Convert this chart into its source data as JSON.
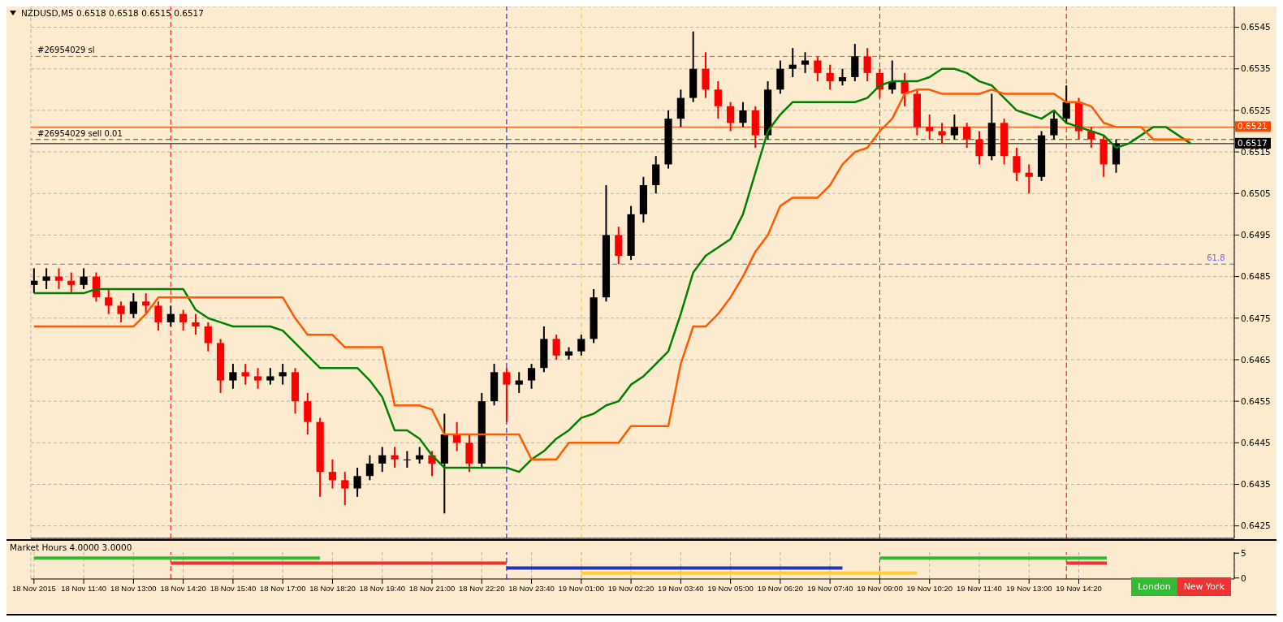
{
  "chart_data": [
    {
      "type": "candlestick",
      "title": "NZDUSD,M5  0.6518 0.6518 0.6515 0.6517",
      "x": [
        "2015-11-18T10:20",
        "2015-11-18T10:40",
        "2015-11-18T11:00",
        "2015-11-18T11:20",
        "2015-11-18T11:40",
        "2015-11-18T12:00",
        "2015-11-18T12:20",
        "2015-11-18T12:40",
        "2015-11-18T13:00",
        "2015-11-18T13:20",
        "2015-11-18T13:40",
        "2015-11-18T14:00",
        "2015-11-18T14:20",
        "2015-11-18T14:40",
        "2015-11-18T15:00",
        "2015-11-18T15:20",
        "2015-11-18T15:40",
        "2015-11-18T16:00",
        "2015-11-18T16:20",
        "2015-11-18T16:40",
        "2015-11-18T17:00",
        "2015-11-18T17:20",
        "2015-11-18T17:40",
        "2015-11-18T18:00",
        "2015-11-18T18:20",
        "2015-11-18T18:40",
        "2015-11-18T19:00",
        "2015-11-18T19:20",
        "2015-11-18T19:40",
        "2015-11-18T20:00",
        "2015-11-18T20:20",
        "2015-11-18T20:40",
        "2015-11-18T21:00",
        "2015-11-18T21:20",
        "2015-11-18T21:40",
        "2015-11-18T22:00",
        "2015-11-18T22:20",
        "2015-11-18T22:40",
        "2015-11-18T23:00",
        "2015-11-18T23:20",
        "2015-11-18T23:40",
        "2015-11-19T00:00",
        "2015-11-19T00:20",
        "2015-11-19T00:40",
        "2015-11-19T01:00",
        "2015-11-19T01:20",
        "2015-11-19T01:40",
        "2015-11-19T02:00",
        "2015-11-19T02:20",
        "2015-11-19T02:40",
        "2015-11-19T03:00",
        "2015-11-19T03:20",
        "2015-11-19T03:40",
        "2015-11-19T04:00",
        "2015-11-19T04:20",
        "2015-11-19T04:40",
        "2015-11-19T05:00",
        "2015-11-19T05:20",
        "2015-11-19T05:40",
        "2015-11-19T06:00",
        "2015-11-19T06:20",
        "2015-11-19T06:40",
        "2015-11-19T07:00",
        "2015-11-19T07:20",
        "2015-11-19T07:40",
        "2015-11-19T08:00",
        "2015-11-19T08:20",
        "2015-11-19T08:40",
        "2015-11-19T09:00",
        "2015-11-19T09:20",
        "2015-11-19T09:40",
        "2015-11-19T10:00",
        "2015-11-19T10:20",
        "2015-11-19T10:40",
        "2015-11-19T11:00",
        "2015-11-19T11:20",
        "2015-11-19T11:40",
        "2015-11-19T12:00",
        "2015-11-19T12:20",
        "2015-11-19T12:40",
        "2015-11-19T13:00",
        "2015-11-19T13:20",
        "2015-11-19T13:40",
        "2015-11-19T14:00",
        "2015-11-19T14:20",
        "2015-11-19T14:40",
        "2015-11-19T15:00",
        "2015-11-19T15:20",
        "2015-11-19T15:40",
        "2015-11-19T16:00",
        "2015-11-19T16:20",
        "2015-11-19T16:40",
        "2015-11-19T17:00",
        "2015-11-19T17:20"
      ],
      "ohlc": [
        [
          0.6483,
          0.6487,
          0.6481,
          0.6484
        ],
        [
          0.6484,
          0.6487,
          0.6482,
          0.6485
        ],
        [
          0.6485,
          0.6487,
          0.6482,
          0.6484
        ],
        [
          0.6484,
          0.6486,
          0.6481,
          0.6483
        ],
        [
          0.6483,
          0.6487,
          0.6482,
          0.6485
        ],
        [
          0.6485,
          0.6486,
          0.6479,
          0.648
        ],
        [
          0.648,
          0.6482,
          0.6476,
          0.6478
        ],
        [
          0.6478,
          0.6479,
          0.6474,
          0.6476
        ],
        [
          0.6476,
          0.6481,
          0.6475,
          0.6479
        ],
        [
          0.6479,
          0.6481,
          0.6476,
          0.6478
        ],
        [
          0.6478,
          0.6479,
          0.6472,
          0.6474
        ],
        [
          0.6474,
          0.6478,
          0.6473,
          0.6476
        ],
        [
          0.6476,
          0.6477,
          0.6472,
          0.6474
        ],
        [
          0.6474,
          0.6476,
          0.6471,
          0.6473
        ],
        [
          0.6473,
          0.6474,
          0.6467,
          0.6469
        ],
        [
          0.6469,
          0.647,
          0.6457,
          0.646
        ],
        [
          0.646,
          0.6464,
          0.6458,
          0.6462
        ],
        [
          0.6462,
          0.6464,
          0.6459,
          0.6461
        ],
        [
          0.6461,
          0.6463,
          0.6458,
          0.646
        ],
        [
          0.646,
          0.6463,
          0.6459,
          0.6461
        ],
        [
          0.6461,
          0.6464,
          0.6459,
          0.6462
        ],
        [
          0.6462,
          0.6463,
          0.6452,
          0.6455
        ],
        [
          0.6455,
          0.6457,
          0.6447,
          0.645
        ],
        [
          0.645,
          0.6451,
          0.6432,
          0.6438
        ],
        [
          0.6438,
          0.6441,
          0.6434,
          0.6436
        ],
        [
          0.6436,
          0.6438,
          0.643,
          0.6434
        ],
        [
          0.6434,
          0.6439,
          0.6432,
          0.6437
        ],
        [
          0.6437,
          0.6442,
          0.6436,
          0.644
        ],
        [
          0.644,
          0.6444,
          0.6438,
          0.6442
        ],
        [
          0.6442,
          0.6444,
          0.6439,
          0.6441
        ],
        [
          0.6441,
          0.6443,
          0.6439,
          0.6441
        ],
        [
          0.6441,
          0.6444,
          0.644,
          0.6442
        ],
        [
          0.6442,
          0.6443,
          0.6437,
          0.644
        ],
        [
          0.644,
          0.6452,
          0.6428,
          0.6447
        ],
        [
          0.6447,
          0.645,
          0.6443,
          0.6445
        ],
        [
          0.6445,
          0.6447,
          0.6438,
          0.644
        ],
        [
          0.644,
          0.6457,
          0.6439,
          0.6455
        ],
        [
          0.6455,
          0.6464,
          0.6454,
          0.6462
        ],
        [
          0.6462,
          0.6463,
          0.645,
          0.6459
        ],
        [
          0.6459,
          0.6462,
          0.6457,
          0.646
        ],
        [
          0.646,
          0.6464,
          0.6458,
          0.6463
        ],
        [
          0.6463,
          0.6473,
          0.6462,
          0.647
        ],
        [
          0.647,
          0.6471,
          0.6465,
          0.6466
        ],
        [
          0.6466,
          0.6468,
          0.6465,
          0.6467
        ],
        [
          0.6467,
          0.6471,
          0.6466,
          0.647
        ],
        [
          0.647,
          0.6482,
          0.6469,
          0.648
        ],
        [
          0.648,
          0.6507,
          0.6479,
          0.6495
        ],
        [
          0.6495,
          0.6497,
          0.6488,
          0.649
        ],
        [
          0.649,
          0.6502,
          0.6489,
          0.65
        ],
        [
          0.65,
          0.6509,
          0.6498,
          0.6507
        ],
        [
          0.6507,
          0.6514,
          0.6505,
          0.6512
        ],
        [
          0.6512,
          0.6525,
          0.6511,
          0.6523
        ],
        [
          0.6523,
          0.653,
          0.6521,
          0.6528
        ],
        [
          0.6528,
          0.6544,
          0.6527,
          0.6535
        ],
        [
          0.6535,
          0.6539,
          0.6528,
          0.653
        ],
        [
          0.653,
          0.6532,
          0.6523,
          0.6526
        ],
        [
          0.6526,
          0.6527,
          0.652,
          0.6522
        ],
        [
          0.6522,
          0.6527,
          0.6521,
          0.6525
        ],
        [
          0.6525,
          0.6526,
          0.6516,
          0.6519
        ],
        [
          0.6519,
          0.6532,
          0.6518,
          0.653
        ],
        [
          0.653,
          0.6537,
          0.6529,
          0.6535
        ],
        [
          0.6535,
          0.654,
          0.6533,
          0.6536
        ],
        [
          0.6536,
          0.6539,
          0.6534,
          0.6537
        ],
        [
          0.6537,
          0.6538,
          0.6532,
          0.6534
        ],
        [
          0.6534,
          0.6536,
          0.653,
          0.6532
        ],
        [
          0.6532,
          0.6535,
          0.6531,
          0.6533
        ],
        [
          0.6533,
          0.6541,
          0.6532,
          0.6538
        ],
        [
          0.6538,
          0.654,
          0.6532,
          0.6534
        ],
        [
          0.6534,
          0.6535,
          0.6528,
          0.653
        ],
        [
          0.653,
          0.6537,
          0.6529,
          0.6532
        ],
        [
          0.6532,
          0.6534,
          0.6526,
          0.6529
        ],
        [
          0.6529,
          0.653,
          0.6519,
          0.6521
        ],
        [
          0.6521,
          0.6524,
          0.6518,
          0.652
        ],
        [
          0.652,
          0.6522,
          0.6517,
          0.6519
        ],
        [
          0.6519,
          0.6524,
          0.6518,
          0.6521
        ],
        [
          0.6521,
          0.6522,
          0.6516,
          0.6518
        ],
        [
          0.6518,
          0.652,
          0.6512,
          0.6514
        ],
        [
          0.6514,
          0.6529,
          0.6513,
          0.6522
        ],
        [
          0.6522,
          0.6523,
          0.6512,
          0.6514
        ],
        [
          0.6514,
          0.6516,
          0.6508,
          0.651
        ],
        [
          0.651,
          0.6512,
          0.6505,
          0.6509
        ],
        [
          0.6509,
          0.652,
          0.6508,
          0.6519
        ],
        [
          0.6519,
          0.6525,
          0.6518,
          0.6523
        ],
        [
          0.6523,
          0.6531,
          0.6522,
          0.6527
        ],
        [
          0.6527,
          0.6528,
          0.6518,
          0.652
        ],
        [
          0.652,
          0.6521,
          0.6516,
          0.6518
        ],
        [
          0.6518,
          0.6519,
          0.6509,
          0.6512
        ],
        [
          0.6512,
          0.6518,
          0.651,
          0.6517
        ],
        null,
        null,
        null,
        null,
        null,
        null
      ],
      "colors": [
        "#000000",
        "#000000",
        "#ff0000",
        "#ff0000",
        "#000000",
        "#ff0000",
        "#ff0000",
        "#ff0000",
        "#000000",
        "#ff0000",
        "#ff0000",
        "#000000",
        "#ff0000",
        "#ff0000",
        "#ff0000",
        "#ff0000",
        "#000000",
        "#ff0000",
        "#ff0000",
        "#000000",
        "#000000",
        "#ff0000",
        "#ff0000",
        "#ff0000",
        "#ff0000",
        "#ff0000",
        "#000000",
        "#000000",
        "#000000",
        "#ff0000",
        "#000000",
        "#000000",
        "#ff0000",
        "#000000",
        "#ff0000",
        "#ff0000",
        "#000000",
        "#000000",
        "#ff0000",
        "#000000",
        "#000000",
        "#000000",
        "#ff0000",
        "#000000",
        "#000000",
        "#000000",
        "#000000",
        "#ff0000",
        "#000000",
        "#000000",
        "#000000",
        "#000000",
        "#000000",
        "#000000",
        "#ff0000",
        "#ff0000",
        "#ff0000",
        "#000000",
        "#ff0000",
        "#000000",
        "#000000",
        "#000000",
        "#000000",
        "#ff0000",
        "#ff0000",
        "#000000",
        "#000000",
        "#ff0000",
        "#ff0000",
        "#000000",
        "#ff0000",
        "#ff0000",
        "#ff0000",
        "#ff0000",
        "#000000",
        "#ff0000",
        "#ff0000",
        "#000000",
        "#ff0000",
        "#ff0000",
        "#ff0000",
        "#000000",
        "#000000",
        "#000000",
        "#ff0000",
        "#ff0000",
        "#ff0000",
        "#000000",
        null,
        null,
        null,
        null,
        null,
        null
      ],
      "series": [
        {
          "type": "line",
          "color": "#008000",
          "values": [
            0.6481,
            0.6481,
            0.6481,
            0.6481,
            0.6481,
            0.6482,
            0.6482,
            0.6482,
            0.6482,
            0.6482,
            0.6482,
            0.6482,
            0.6482,
            0.6477,
            0.6475,
            0.6474,
            0.6473,
            0.6473,
            0.6473,
            0.6473,
            0.6472,
            0.6469,
            0.6466,
            0.6463,
            0.6463,
            0.6463,
            0.6463,
            0.646,
            0.6456,
            0.6448,
            0.6448,
            0.6446,
            0.6442,
            0.6439,
            0.6439,
            0.6439,
            0.6439,
            0.6439,
            0.6439,
            0.6438,
            0.6441,
            0.6443,
            0.6446,
            0.6448,
            0.6451,
            0.6452,
            0.6454,
            0.6455,
            0.6459,
            0.6461,
            0.6464,
            0.6467,
            0.6476,
            0.6486,
            0.649,
            0.6492,
            0.6494,
            0.65,
            0.651,
            0.652,
            0.6524,
            0.6527,
            0.6527,
            0.6527,
            0.6527,
            0.6527,
            0.6527,
            0.6528,
            0.6531,
            0.6532,
            0.6532,
            0.6532,
            0.6533,
            0.6535,
            0.6535,
            0.6534,
            0.6532,
            0.6531,
            0.6528,
            0.6525,
            0.6524,
            0.6523,
            0.6525,
            0.6522,
            0.6521,
            0.652,
            0.6519,
            0.6516,
            0.6517,
            0.6519,
            0.6521,
            0.6521,
            0.6519,
            0.6517
          ]
        },
        {
          "type": "line",
          "color": "#ff5a00",
          "values": [
            0.6473,
            0.6473,
            0.6473,
            0.6473,
            0.6473,
            0.6473,
            0.6473,
            0.6473,
            0.6473,
            0.6476,
            0.648,
            0.648,
            0.648,
            0.648,
            0.648,
            0.648,
            0.648,
            0.648,
            0.648,
            0.648,
            0.648,
            0.6475,
            0.6471,
            0.6471,
            0.6471,
            0.6468,
            0.6468,
            0.6468,
            0.6468,
            0.6454,
            0.6454,
            0.6454,
            0.6453,
            0.6447,
            0.6447,
            0.6447,
            0.6447,
            0.6447,
            0.6447,
            0.6447,
            0.6441,
            0.6441,
            0.6441,
            0.6445,
            0.6445,
            0.6445,
            0.6445,
            0.6445,
            0.6449,
            0.6449,
            0.6449,
            0.6449,
            0.6464,
            0.6473,
            0.6473,
            0.6476,
            0.648,
            0.6485,
            0.6491,
            0.6495,
            0.6502,
            0.6504,
            0.6504,
            0.6504,
            0.6507,
            0.6512,
            0.6515,
            0.6516,
            0.652,
            0.6523,
            0.6529,
            0.653,
            0.653,
            0.6529,
            0.6529,
            0.6529,
            0.6529,
            0.653,
            0.6529,
            0.6529,
            0.6529,
            0.6529,
            0.6529,
            0.6527,
            0.6527,
            0.6526,
            0.6522,
            0.6521,
            0.6521,
            0.6521,
            0.6518,
            0.6518,
            0.6518,
            0.6518
          ]
        }
      ],
      "xlim": [
        "2015-11-18T10:15",
        "2015-11-19T18:30"
      ],
      "ylim": [
        0.6422,
        0.655
      ],
      "yticks": [
        0.6425,
        0.6435,
        0.6445,
        0.6455,
        0.6465,
        0.6475,
        0.6485,
        0.6495,
        0.6505,
        0.6515,
        0.6525,
        0.6535,
        0.6545
      ],
      "tick_labels": "y",
      "grid": true,
      "annotations": [
        {
          "text": "61.8",
          "x": "2015-11-19T18:15",
          "y": 0.6488
        }
      ],
      "ref_lines": [
        {
          "axis": "y",
          "value": 0.6538,
          "label": "#26954029 sl",
          "color": "#ff4500",
          "line_style": "dashed"
        },
        {
          "axis": "y",
          "value": 0.6521,
          "label": "0.6521",
          "color": "#ff4500",
          "line_style": "solid"
        },
        {
          "axis": "y",
          "value": 0.6518,
          "label": "#26954029 sell 0.01",
          "color": "#008000",
          "line_style": "dashed"
        },
        {
          "axis": "y",
          "value": 0.6517,
          "label": "0.6517",
          "color": "#000000",
          "line_style": "solid"
        },
        {
          "axis": "y",
          "value": 0.6488,
          "color": "#6666ee",
          "line_style": "dashed"
        },
        {
          "axis": "x",
          "value": "2015-11-18T14:00",
          "color": "#ff0000",
          "line_style": "dashed"
        },
        {
          "axis": "x",
          "value": "2015-11-18T23:00",
          "color": "#0000ff",
          "line_style": "dashed"
        },
        {
          "axis": "x",
          "value": "2015-11-19T01:00",
          "color": "#ffcc00",
          "line_style": "dashed"
        },
        {
          "axis": "x",
          "value": "2015-11-19T09:00",
          "color": "#008000",
          "line_style": "dashed"
        },
        {
          "axis": "x",
          "value": "2015-11-19T14:00",
          "color": "#ff0000",
          "line_style": "dashed"
        }
      ]
    },
    {
      "type": "line",
      "title": "Market Hours 4.0000 3.0000",
      "legend": "bottom right",
      "series": [
        {
          "name": "London",
          "color": "#33bb33",
          "x": [
            "2015-11-18T10:20",
            "2015-11-18T18:00",
            "2015-11-19T00:00",
            "2015-11-19T09:00",
            "2015-11-19T15:05"
          ],
          "values": [
            4,
            4,
            null,
            4,
            4
          ]
        },
        {
          "name": "New York",
          "color": "#ee3333",
          "x": [
            "2015-11-18T14:00",
            "2015-11-18T23:00",
            "2015-11-19T05:00",
            "2015-11-19T14:00",
            "2015-11-19T15:05"
          ],
          "values": [
            3,
            3,
            null,
            3,
            3
          ]
        },
        {
          "color": "#2233bb",
          "x": [
            "2015-11-18T23:00",
            "2015-11-19T08:00"
          ],
          "values": [
            2,
            2
          ]
        },
        {
          "color": "#ffcc33",
          "x": [
            "2015-11-19T01:00",
            "2015-11-19T10:00"
          ],
          "values": [
            1,
            1
          ]
        }
      ],
      "xlim": [
        "2015-11-18T10:15",
        "2015-11-19T18:30"
      ],
      "xticks": [
        {
          "value": "2015-11-18T10:20",
          "label": "18 Nov 2015"
        },
        {
          "value": "2015-11-18T11:40",
          "label": "18 Nov 11:40"
        },
        {
          "value": "2015-11-18T13:00",
          "label": "18 Nov 13:00"
        },
        {
          "value": "2015-11-18T14:20",
          "label": "18 Nov 14:20"
        },
        {
          "value": "2015-11-18T15:40",
          "label": "18 Nov 15:40"
        },
        {
          "value": "2015-11-18T17:00",
          "label": "18 Nov 17:00"
        },
        {
          "value": "2015-11-18T18:20",
          "label": "18 Nov 18:20"
        },
        {
          "value": "2015-11-18T19:40",
          "label": "18 Nov 19:40"
        },
        {
          "value": "2015-11-18T21:00",
          "label": "18 Nov 21:00"
        },
        {
          "value": "2015-11-18T22:20",
          "label": "18 Nov 22:20"
        },
        {
          "value": "2015-11-18T23:40",
          "label": "18 Nov 23:40"
        },
        {
          "value": "2015-11-19T01:00",
          "label": "19 Nov 01:00"
        },
        {
          "value": "2015-11-19T02:20",
          "label": "19 Nov 02:20"
        },
        {
          "value": "2015-11-19T03:40",
          "label": "19 Nov 03:40"
        },
        {
          "value": "2015-11-19T05:00",
          "label": "19 Nov 05:00"
        },
        {
          "value": "2015-11-19T06:20",
          "label": "19 Nov 06:20"
        },
        {
          "value": "2015-11-19T07:40",
          "label": "19 Nov 07:40"
        },
        {
          "value": "2015-11-19T09:00",
          "label": "19 Nov 09:00"
        },
        {
          "value": "2015-11-19T10:20",
          "label": "19 Nov 10:20"
        },
        {
          "value": "2015-11-19T11:40",
          "label": "19 Nov 11:40"
        },
        {
          "value": "2015-11-19T13:00",
          "label": "19 Nov 13:00"
        },
        {
          "value": "2015-11-19T14:20",
          "label": "19 Nov 14:20"
        }
      ],
      "ylim": [
        -0.2,
        5.2
      ],
      "yticks": [
        0,
        5
      ],
      "grid": "x",
      "ref_lines": [
        {
          "axis": "x",
          "value": "2015-11-18T14:00",
          "color": "#ff0000",
          "line_style": "dashed"
        },
        {
          "axis": "x",
          "value": "2015-11-18T23:00",
          "color": "#0000ff",
          "line_style": "dashed"
        },
        {
          "axis": "x",
          "value": "2015-11-19T01:00",
          "color": "#ffcc00",
          "line_style": "dashed"
        },
        {
          "axis": "x",
          "value": "2015-11-19T09:00",
          "color": "#008000",
          "line_style": "dashed"
        },
        {
          "axis": "x",
          "value": "2015-11-19T14:00",
          "color": "#ff0000",
          "line_style": "dashed"
        }
      ]
    }
  ]
}
